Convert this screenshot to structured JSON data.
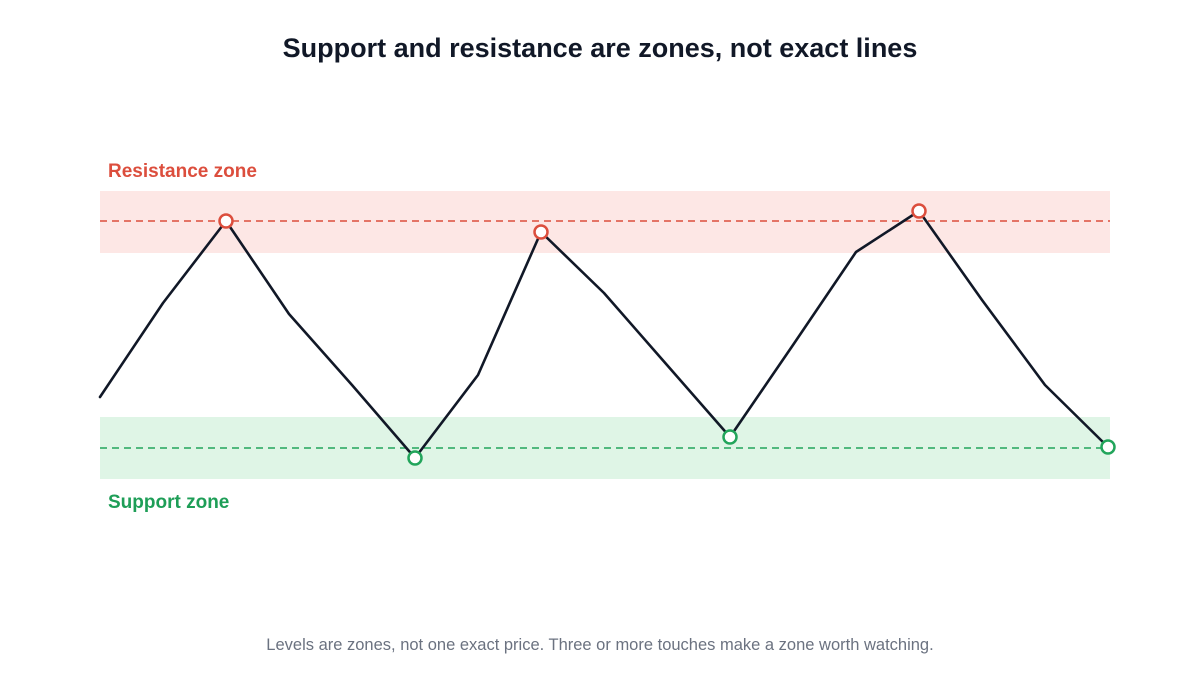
{
  "title": "Support and resistance are zones, not exact lines",
  "caption": "Levels are zones, not one exact price. Three or more touches make a zone worth watching.",
  "resistance": {
    "label": "Resistance zone",
    "color": "#dc4e3d",
    "fill": "#fde7e5"
  },
  "support": {
    "label": "Support zone",
    "color": "#22a55b",
    "label_color": "#1e9e57",
    "fill": "#dff5e6"
  },
  "line_color": "#111827"
}
